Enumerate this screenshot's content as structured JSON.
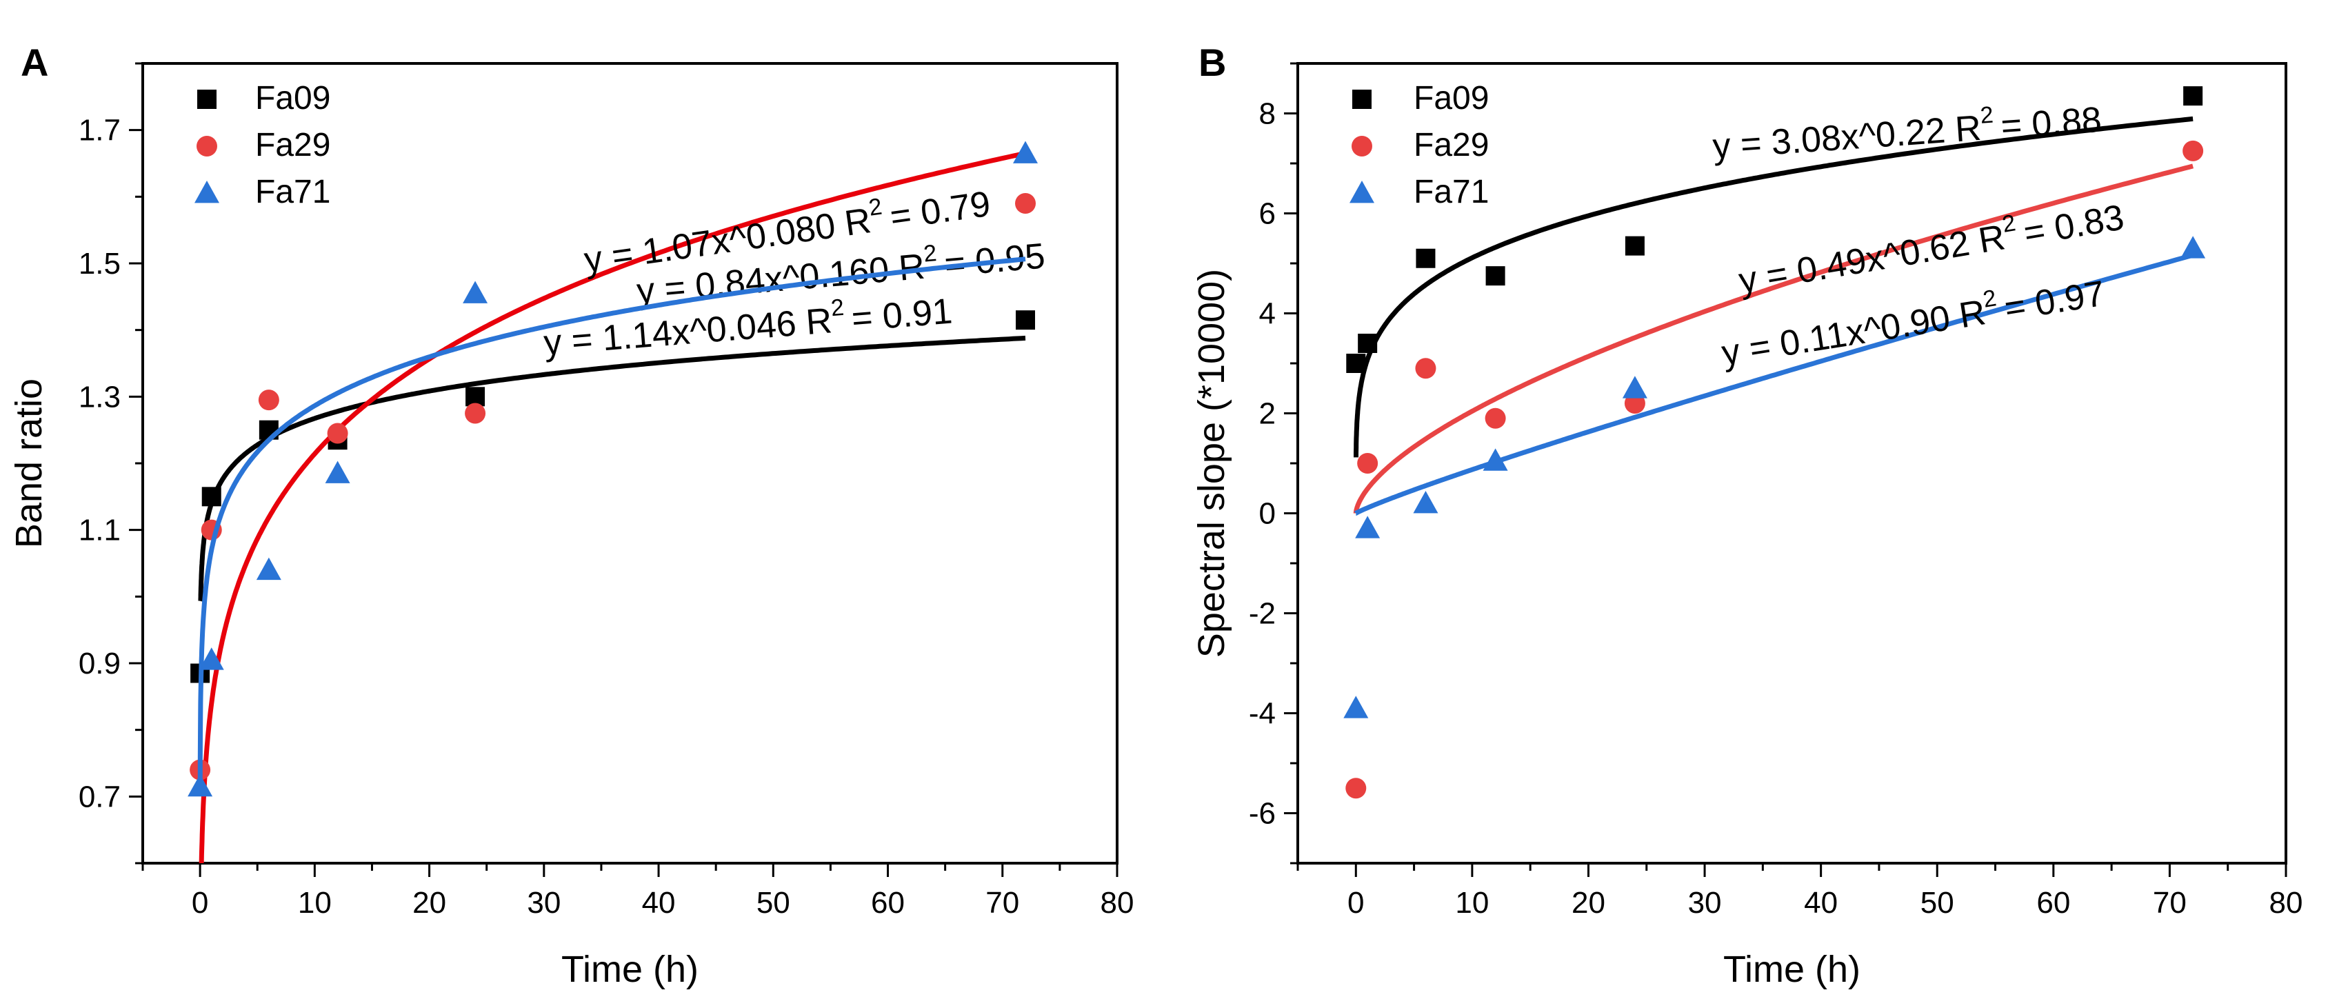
{
  "chart_data": [
    {
      "id": "A",
      "type": "scatter",
      "panel_label": "A",
      "xlabel": "Time (h)",
      "ylabel": "Band ratio",
      "xlim": [
        -5,
        80
      ],
      "ylim": [
        0.6,
        1.8
      ],
      "xticks": [
        0,
        10,
        20,
        30,
        40,
        50,
        60,
        70,
        80
      ],
      "yticks": [
        0.7,
        0.9,
        1.1,
        1.3,
        1.5,
        1.7
      ],
      "ytick_labels": [
        "0.7",
        "0.9",
        "1.1",
        "1.3",
        "1.5",
        "1.7"
      ],
      "legend_position": "top-left",
      "series": [
        {
          "name": "Fa09",
          "marker": "square",
          "point_color": "#000000",
          "line_color": "#000000",
          "x": [
            0,
            1,
            6,
            12,
            24,
            72
          ],
          "y": [
            0.885,
            1.15,
            1.25,
            1.235,
            1.3,
            1.415
          ],
          "fit": {
            "a": 1.14,
            "b": 0.046
          },
          "equation": "y = 1.14x^0.046  R",
          "r2": "= 0.91"
        },
        {
          "name": "Fa29",
          "marker": "circle",
          "point_color": "#e8403f",
          "line_color": "#e8000b",
          "x": [
            0,
            1,
            6,
            12,
            24,
            72
          ],
          "y": [
            0.74,
            1.1,
            1.295,
            1.245,
            1.275,
            1.59
          ],
          "fit": {
            "a": 0.84,
            "b": 0.16
          },
          "equation": "y = 0.84x^0.160  R",
          "r2": "= 0.95"
        },
        {
          "name": "Fa71",
          "marker": "triangle",
          "point_color": "#2a74d6",
          "line_color": "#2a74d6",
          "x": [
            0,
            1,
            6,
            12,
            24,
            72
          ],
          "y": [
            0.715,
            0.905,
            1.04,
            1.185,
            1.455,
            1.665
          ],
          "fit": {
            "a": 1.07,
            "b": 0.08
          },
          "equation": "y = 1.07x^0.080  R",
          "r2": "= 0.79"
        }
      ]
    },
    {
      "id": "B",
      "type": "scatter",
      "panel_label": "B",
      "xlabel": "Time (h)",
      "ylabel": "Spectral slope (*10000)",
      "xlim": [
        -5,
        80
      ],
      "ylim": [
        -7,
        9
      ],
      "xticks": [
        0,
        10,
        20,
        30,
        40,
        50,
        60,
        70,
        80
      ],
      "yticks": [
        -6,
        -4,
        -2,
        0,
        2,
        4,
        6,
        8
      ],
      "ytick_labels": [
        "-6",
        "-4",
        "-2",
        "0",
        "2",
        "4",
        "6",
        "8"
      ],
      "legend_position": "top-left",
      "series": [
        {
          "name": "Fa09",
          "marker": "square",
          "point_color": "#000000",
          "line_color": "#000000",
          "x": [
            0,
            1,
            6,
            12,
            24,
            72
          ],
          "y": [
            3.0,
            3.4,
            5.1,
            4.75,
            5.35,
            8.35
          ],
          "fit": {
            "a": 3.08,
            "b": 0.22
          },
          "equation": "y = 3.08x^0.22  R",
          "r2": "= 0.88"
        },
        {
          "name": "Fa29",
          "marker": "circle",
          "point_color": "#e8403f",
          "line_color": "#e84444",
          "x": [
            0,
            1,
            6,
            12,
            24,
            72
          ],
          "y": [
            -5.5,
            1.0,
            2.9,
            1.9,
            2.2,
            7.25
          ],
          "fit": {
            "a": 0.49,
            "b": 0.62
          },
          "equation": "y = 0.49x^0.62  R",
          "r2": "= 0.83"
        },
        {
          "name": "Fa71",
          "marker": "triangle",
          "point_color": "#2a74d6",
          "line_color": "#2a74d6",
          "x": [
            0,
            1,
            6,
            12,
            24,
            72
          ],
          "y": [
            -3.9,
            -0.3,
            0.2,
            1.05,
            2.5,
            5.3
          ],
          "fit": {
            "a": 0.11,
            "b": 0.9
          },
          "equation": "y = 0.11x^0.90  R",
          "r2": "= 0.97"
        }
      ]
    }
  ]
}
